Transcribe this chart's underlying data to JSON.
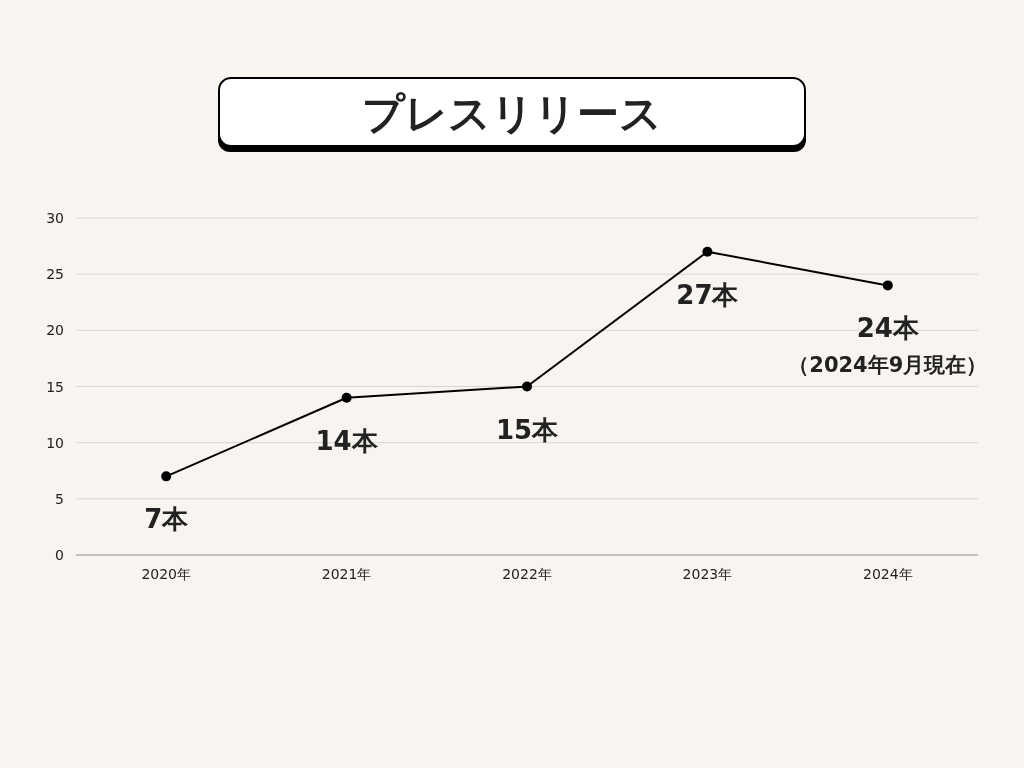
{
  "chart_data": {
    "type": "line",
    "title": "プレスリリース",
    "categories": [
      "2020年",
      "2021年",
      "2022年",
      "2023年",
      "2024年"
    ],
    "series": [
      {
        "color": "#000000",
        "values": [
          7,
          14,
          15,
          27,
          24
        ],
        "value_labels": [
          "7本",
          "14本",
          "15本",
          "27本",
          "24本"
        ]
      }
    ],
    "annotations": [
      "（2024年9月現在）"
    ],
    "ylim": [
      0,
      30
    ],
    "yticks": [
      0,
      5,
      10,
      15,
      20,
      25,
      30
    ],
    "grid": "y",
    "marker": "circle",
    "line_style": "solid"
  }
}
